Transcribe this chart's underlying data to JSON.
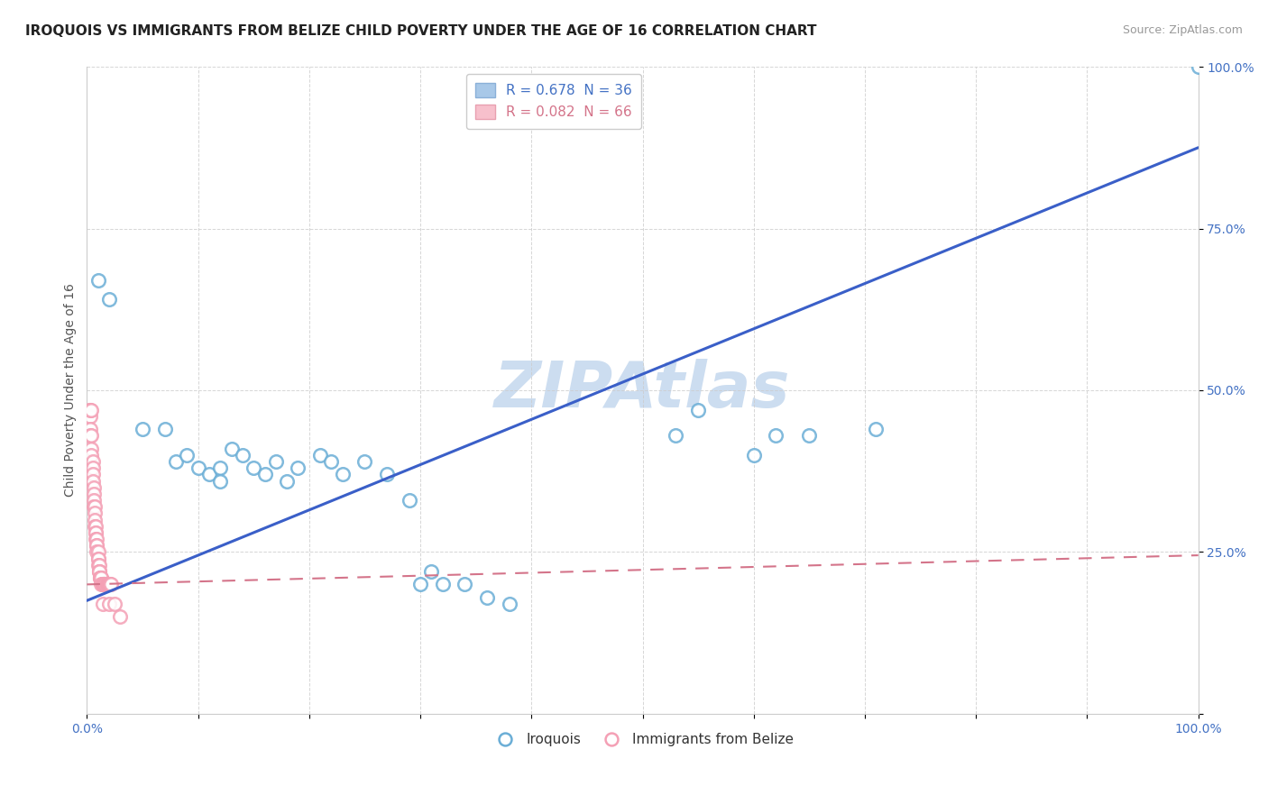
{
  "title": "IROQUOIS VS IMMIGRANTS FROM BELIZE CHILD POVERTY UNDER THE AGE OF 16 CORRELATION CHART",
  "source": "Source: ZipAtlas.com",
  "ylabel": "Child Poverty Under the Age of 16",
  "watermark": "ZIPAtlas",
  "iroquois_color": "#6baed6",
  "belize_color": "#f4a0b5",
  "iroquois_label": "Iroquois",
  "belize_label": "Immigrants from Belize",
  "iroquois_R": "0.678",
  "iroquois_N": "36",
  "belize_R": "0.082",
  "belize_N": "66",
  "iroquois_scatter": [
    [
      0.01,
      0.67
    ],
    [
      0.02,
      0.64
    ],
    [
      0.05,
      0.44
    ],
    [
      0.07,
      0.44
    ],
    [
      0.08,
      0.39
    ],
    [
      0.09,
      0.4
    ],
    [
      0.1,
      0.38
    ],
    [
      0.11,
      0.37
    ],
    [
      0.12,
      0.38
    ],
    [
      0.12,
      0.36
    ],
    [
      0.13,
      0.41
    ],
    [
      0.14,
      0.4
    ],
    [
      0.15,
      0.38
    ],
    [
      0.16,
      0.37
    ],
    [
      0.17,
      0.39
    ],
    [
      0.18,
      0.36
    ],
    [
      0.19,
      0.38
    ],
    [
      0.21,
      0.4
    ],
    [
      0.22,
      0.39
    ],
    [
      0.23,
      0.37
    ],
    [
      0.25,
      0.39
    ],
    [
      0.27,
      0.37
    ],
    [
      0.29,
      0.33
    ],
    [
      0.3,
      0.2
    ],
    [
      0.31,
      0.22
    ],
    [
      0.32,
      0.2
    ],
    [
      0.34,
      0.2
    ],
    [
      0.36,
      0.18
    ],
    [
      0.38,
      0.17
    ],
    [
      0.53,
      0.43
    ],
    [
      0.55,
      0.47
    ],
    [
      0.6,
      0.4
    ],
    [
      0.62,
      0.43
    ],
    [
      0.65,
      0.43
    ],
    [
      0.71,
      0.44
    ],
    [
      1.0,
      1.0
    ]
  ],
  "belize_scatter": [
    [
      0.002,
      0.47
    ],
    [
      0.003,
      0.46
    ],
    [
      0.003,
      0.44
    ],
    [
      0.003,
      0.43
    ],
    [
      0.004,
      0.43
    ],
    [
      0.004,
      0.41
    ],
    [
      0.004,
      0.4
    ],
    [
      0.005,
      0.39
    ],
    [
      0.005,
      0.38
    ],
    [
      0.005,
      0.37
    ],
    [
      0.005,
      0.36
    ],
    [
      0.006,
      0.35
    ],
    [
      0.006,
      0.34
    ],
    [
      0.006,
      0.33
    ],
    [
      0.006,
      0.32
    ],
    [
      0.007,
      0.32
    ],
    [
      0.007,
      0.31
    ],
    [
      0.007,
      0.3
    ],
    [
      0.007,
      0.29
    ],
    [
      0.008,
      0.29
    ],
    [
      0.008,
      0.28
    ],
    [
      0.008,
      0.28
    ],
    [
      0.008,
      0.27
    ],
    [
      0.009,
      0.27
    ],
    [
      0.009,
      0.26
    ],
    [
      0.009,
      0.26
    ],
    [
      0.009,
      0.25
    ],
    [
      0.01,
      0.25
    ],
    [
      0.01,
      0.24
    ],
    [
      0.01,
      0.24
    ],
    [
      0.01,
      0.23
    ],
    [
      0.011,
      0.23
    ],
    [
      0.011,
      0.22
    ],
    [
      0.011,
      0.22
    ],
    [
      0.011,
      0.22
    ],
    [
      0.012,
      0.21
    ],
    [
      0.012,
      0.21
    ],
    [
      0.012,
      0.21
    ],
    [
      0.013,
      0.21
    ],
    [
      0.013,
      0.21
    ],
    [
      0.013,
      0.2
    ],
    [
      0.014,
      0.2
    ],
    [
      0.014,
      0.2
    ],
    [
      0.014,
      0.2
    ],
    [
      0.015,
      0.2
    ],
    [
      0.015,
      0.2
    ],
    [
      0.015,
      0.2
    ],
    [
      0.016,
      0.2
    ],
    [
      0.016,
      0.2
    ],
    [
      0.016,
      0.2
    ],
    [
      0.017,
      0.2
    ],
    [
      0.017,
      0.2
    ],
    [
      0.018,
      0.2
    ],
    [
      0.018,
      0.2
    ],
    [
      0.019,
      0.2
    ],
    [
      0.019,
      0.2
    ],
    [
      0.02,
      0.2
    ],
    [
      0.02,
      0.2
    ],
    [
      0.021,
      0.2
    ],
    [
      0.022,
      0.2
    ],
    [
      0.003,
      0.47
    ],
    [
      0.004,
      0.47
    ],
    [
      0.014,
      0.17
    ],
    [
      0.02,
      0.17
    ],
    [
      0.025,
      0.17
    ],
    [
      0.03,
      0.15
    ]
  ],
  "xlim": [
    0.0,
    1.0
  ],
  "ylim": [
    0.0,
    1.0
  ],
  "xticks": [
    0.0,
    0.1,
    0.2,
    0.3,
    0.4,
    0.5,
    0.6,
    0.7,
    0.8,
    0.9,
    1.0
  ],
  "yticks": [
    0.0,
    0.25,
    0.5,
    0.75,
    1.0
  ],
  "xticklabels": [
    "0.0%",
    "",
    "",
    "",
    "",
    "",
    "",
    "",
    "",
    "",
    "100.0%"
  ],
  "yticklabels": [
    "",
    "25.0%",
    "50.0%",
    "75.0%",
    "100.0%"
  ],
  "grid_color": "#cccccc",
  "background_color": "#ffffff",
  "title_fontsize": 11,
  "axis_label_fontsize": 10,
  "tick_fontsize": 10,
  "source_fontsize": 9,
  "watermark_fontsize": 52,
  "watermark_color": "#ccddf0",
  "iroquois_line_x": [
    0.0,
    1.0
  ],
  "iroquois_line_y": [
    0.175,
    0.875
  ],
  "belize_line_x": [
    0.0,
    1.0
  ],
  "belize_line_y": [
    0.2,
    0.245
  ]
}
